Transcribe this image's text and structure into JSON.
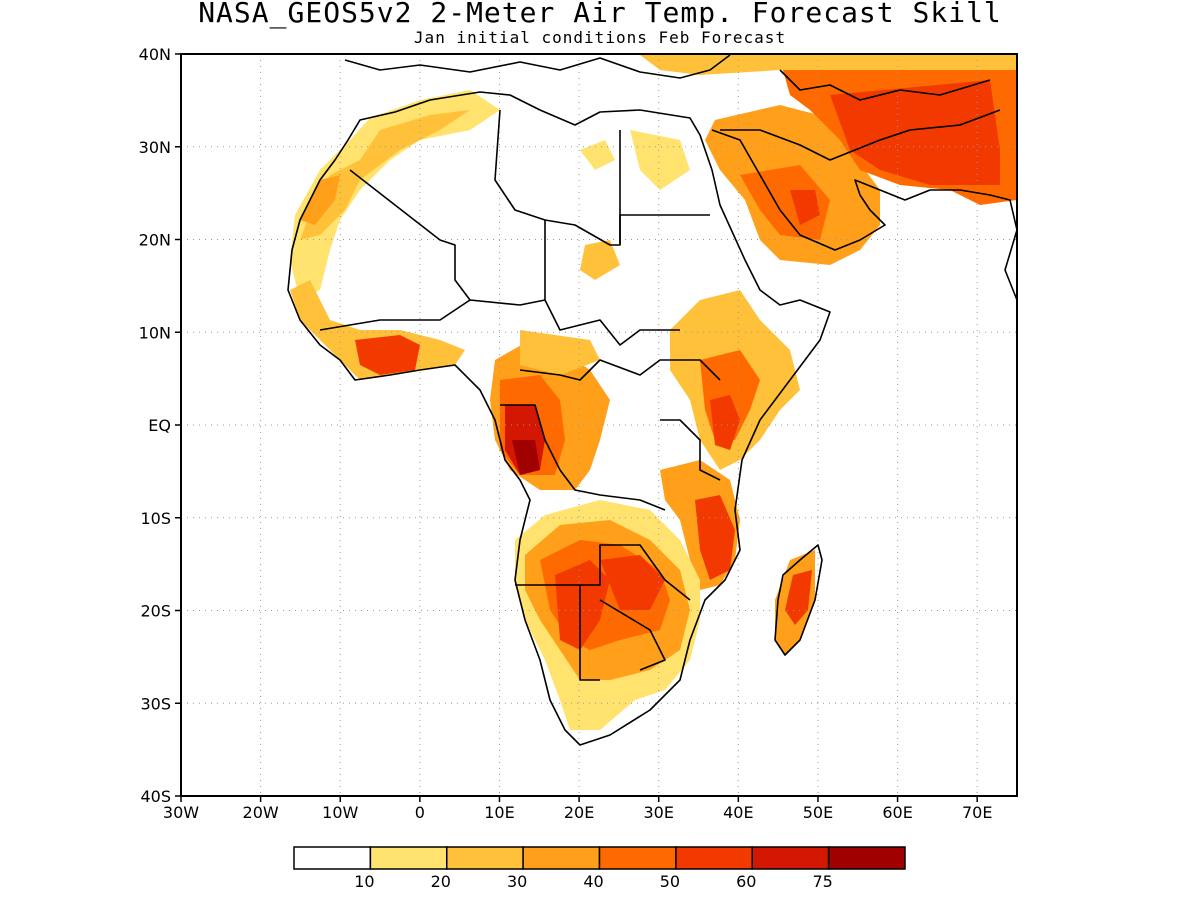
{
  "title": "NASA_GEOS5v2 2-Meter Air Temp. Forecast Skill",
  "subtitle": "Jan initial conditions  Feb Forecast",
  "map": {
    "region": "Africa and Arabian Peninsula",
    "lon_range": [
      -30,
      75
    ],
    "lat_range": [
      -40,
      40
    ],
    "grid": true,
    "lat_labels": [
      "40N",
      "30N",
      "20N",
      "10N",
      "EQ",
      "10S",
      "20S",
      "30S",
      "40S"
    ],
    "lon_labels": [
      "30W",
      "20W",
      "10W",
      "0",
      "10E",
      "20E",
      "30E",
      "40E",
      "50E",
      "60E",
      "70E"
    ]
  },
  "colorbar": {
    "levels": [
      "10",
      "20",
      "30",
      "40",
      "50",
      "60",
      "75"
    ],
    "colors": [
      "#ffffff",
      "#ffe36e",
      "#ffc13a",
      "#ff9f1a",
      "#ff6a00",
      "#f23a00",
      "#d41700",
      "#a10000"
    ]
  }
}
